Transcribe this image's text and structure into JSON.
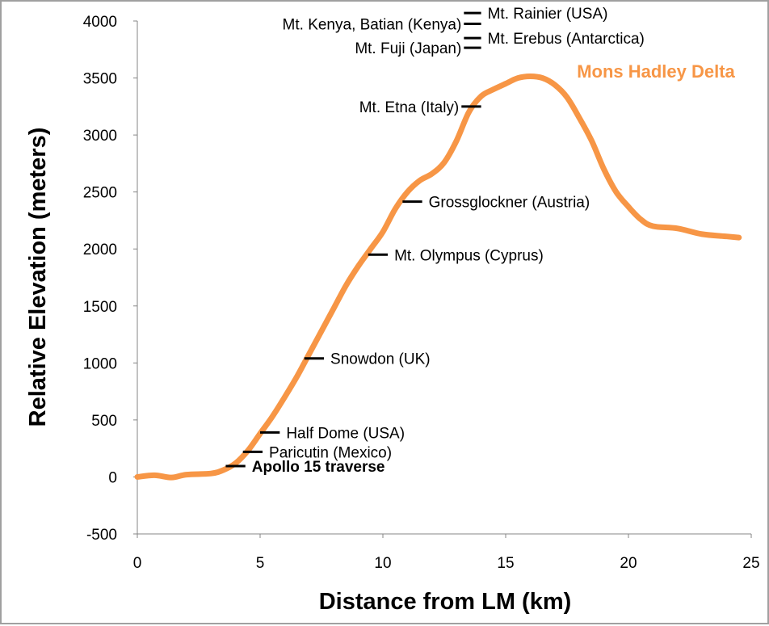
{
  "chart_data": {
    "type": "line",
    "title": "",
    "xlabel": "Distance from LM (km)",
    "ylabel": "Relative Elevation (meters)",
    "xlim": [
      0,
      25
    ],
    "ylim": [
      -500,
      4000
    ],
    "xticks": [
      0,
      5,
      10,
      15,
      20,
      25
    ],
    "yticks": [
      -500,
      0,
      500,
      1000,
      1500,
      2000,
      2500,
      3000,
      3500,
      4000
    ],
    "grid": false,
    "series": [
      {
        "name": "Mons Hadley Delta",
        "color": "#f79646",
        "x": [
          0,
          0.7,
          1.4,
          2,
          3,
          3.5,
          4,
          4.5,
          5,
          5.5,
          6,
          6.5,
          7,
          7.5,
          8,
          8.5,
          9,
          9.5,
          10,
          10.5,
          11,
          11.5,
          12,
          12.5,
          13,
          13.5,
          14,
          14.5,
          15,
          15.5,
          16,
          16.5,
          17,
          17.5,
          18,
          18.5,
          19,
          19.5,
          20,
          20.5,
          21,
          22,
          23,
          24,
          24.5
        ],
        "y": [
          0,
          15,
          -5,
          20,
          30,
          60,
          120,
          230,
          380,
          530,
          700,
          880,
          1080,
          1280,
          1480,
          1680,
          1850,
          2000,
          2150,
          2350,
          2500,
          2600,
          2660,
          2760,
          2950,
          3200,
          3340,
          3400,
          3450,
          3500,
          3515,
          3500,
          3440,
          3330,
          3150,
          2950,
          2700,
          2500,
          2370,
          2260,
          2200,
          2180,
          2130,
          2110,
          2100
        ]
      }
    ],
    "annotations": [
      {
        "label": "Mt. Rainier (USA)",
        "x": [
          13.3,
          14.0
        ],
        "y": 4070,
        "side": "right",
        "bold": false
      },
      {
        "label": "Mt. Kenya, Batian (Kenya)",
        "x": [
          13.3,
          14.0
        ],
        "y": 3975,
        "side": "left",
        "bold": false
      },
      {
        "label": "Mt. Erebus (Antarctica)",
        "x": [
          13.3,
          14.0
        ],
        "y": 3850,
        "side": "right",
        "bold": false
      },
      {
        "label": "Mt. Fuji (Japan)",
        "x": [
          13.3,
          14.0
        ],
        "y": 3765,
        "side": "left",
        "bold": false
      },
      {
        "label": "Mt. Etna (Italy)",
        "x": [
          13.2,
          14.0
        ],
        "y": 3250,
        "side": "left",
        "bold": false
      },
      {
        "label": "Grossglockner (Austria)",
        "x": [
          10.8,
          11.6
        ],
        "y": 2415,
        "side": "right",
        "bold": false
      },
      {
        "label": "Mt. Olympus (Cyprus)",
        "x": [
          9.4,
          10.2
        ],
        "y": 1950,
        "side": "right",
        "bold": false
      },
      {
        "label": "Snowdon (UK)",
        "x": [
          6.8,
          7.6
        ],
        "y": 1040,
        "side": "right",
        "bold": false
      },
      {
        "label": "Half Dome (USA)",
        "x": [
          5.0,
          5.8
        ],
        "y": 390,
        "side": "right",
        "bold": false
      },
      {
        "label": "Paricutin (Mexico)",
        "x": [
          4.3,
          5.1
        ],
        "y": 220,
        "side": "right",
        "bold": false
      },
      {
        "label": "Apollo 15 traverse",
        "x": [
          3.6,
          4.4
        ],
        "y": 95,
        "side": "right",
        "bold": true
      }
    ]
  }
}
